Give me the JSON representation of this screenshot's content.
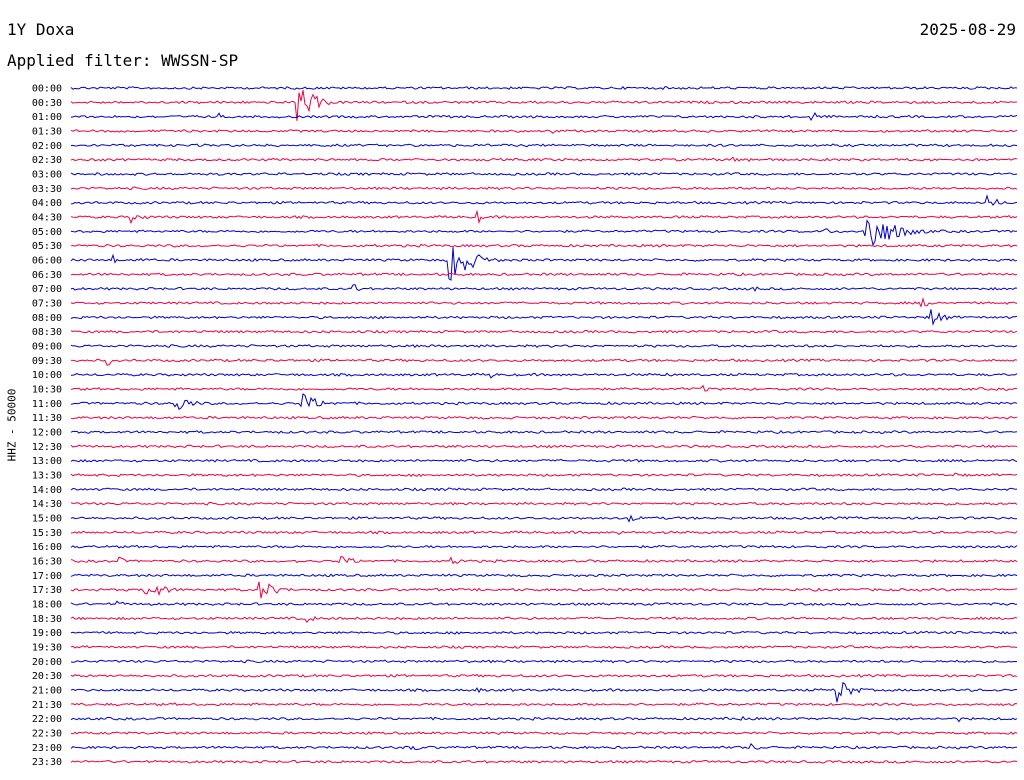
{
  "header": {
    "station": "1Y Doxa",
    "date": "2025-08-29",
    "filter": "Applied filter: WWSSN-SP"
  },
  "chart_data": {
    "type": "line",
    "title": "1Y Doxa",
    "subtitle": "Applied filter: WWSSN-SP",
    "ylabel": "HHZ - 50000",
    "colors": [
      "#0000cc",
      "#ee0044"
    ],
    "row_labels": [
      "00:00",
      "00:30",
      "01:00",
      "01:30",
      "02:00",
      "02:30",
      "03:00",
      "03:30",
      "04:00",
      "04:30",
      "05:00",
      "05:30",
      "06:00",
      "06:30",
      "07:00",
      "07:30",
      "08:00",
      "08:30",
      "09:00",
      "09:30",
      "10:00",
      "10:30",
      "11:00",
      "11:30",
      "12:00",
      "12:30",
      "13:00",
      "13:30",
      "14:00",
      "14:30",
      "15:00",
      "15:30",
      "16:00",
      "16:30",
      "17:00",
      "17:30",
      "18:00",
      "18:30",
      "19:00",
      "19:30",
      "20:00",
      "20:30",
      "21:00",
      "21:30",
      "22:00",
      "22:30",
      "23:00",
      "23:30"
    ],
    "events": [
      {
        "row": 1,
        "pos": 0.24,
        "amp": 22,
        "dur": 0.025
      },
      {
        "row": 2,
        "pos": 0.157,
        "amp": 4,
        "dur": 0.004
      },
      {
        "row": 2,
        "pos": 0.783,
        "amp": 8,
        "dur": 0.01
      },
      {
        "row": 1,
        "pos": 0.873,
        "amp": 3,
        "dur": 0.004
      },
      {
        "row": 3,
        "pos": 0.51,
        "amp": 3,
        "dur": 0.006
      },
      {
        "row": 5,
        "pos": 0.7,
        "amp": 3,
        "dur": 0.06
      },
      {
        "row": 8,
        "pos": 0.97,
        "amp": 7,
        "dur": 0.02
      },
      {
        "row": 9,
        "pos": 0.065,
        "amp": 6,
        "dur": 0.02
      },
      {
        "row": 9,
        "pos": 0.43,
        "amp": 7,
        "dur": 0.008
      },
      {
        "row": 9,
        "pos": 0.64,
        "amp": 4,
        "dur": 0.004
      },
      {
        "row": 10,
        "pos": 0.84,
        "amp": 26,
        "dur": 0.04
      },
      {
        "row": 10,
        "pos": 0.797,
        "amp": 5,
        "dur": 0.01
      },
      {
        "row": 12,
        "pos": 0.4,
        "amp": 30,
        "dur": 0.03
      },
      {
        "row": 12,
        "pos": 0.045,
        "amp": 5,
        "dur": 0.006
      },
      {
        "row": 12,
        "pos": 0.075,
        "amp": 3,
        "dur": 0.004
      },
      {
        "row": 14,
        "pos": 0.3,
        "amp": 5,
        "dur": 0.01
      },
      {
        "row": 14,
        "pos": 0.72,
        "amp": 5,
        "dur": 0.008
      },
      {
        "row": 15,
        "pos": 0.9,
        "amp": 5,
        "dur": 0.015
      },
      {
        "row": 16,
        "pos": 0.91,
        "amp": 10,
        "dur": 0.02
      },
      {
        "row": 19,
        "pos": 0.04,
        "amp": 5,
        "dur": 0.004
      },
      {
        "row": 20,
        "pos": 0.445,
        "amp": 4,
        "dur": 0.004
      },
      {
        "row": 20,
        "pos": 0.63,
        "amp": 3,
        "dur": 0.008
      },
      {
        "row": 21,
        "pos": 0.67,
        "amp": 4,
        "dur": 0.008
      },
      {
        "row": 22,
        "pos": 0.11,
        "amp": 10,
        "dur": 0.025
      },
      {
        "row": 22,
        "pos": 0.245,
        "amp": 10,
        "dur": 0.03
      },
      {
        "row": 27,
        "pos": 0.935,
        "amp": 3,
        "dur": 0.006
      },
      {
        "row": 28,
        "pos": 0.4,
        "amp": 3,
        "dur": 0.008
      },
      {
        "row": 30,
        "pos": 0.59,
        "amp": 4,
        "dur": 0.02
      },
      {
        "row": 31,
        "pos": 0.58,
        "amp": 3,
        "dur": 0.006
      },
      {
        "row": 33,
        "pos": 0.05,
        "amp": 5,
        "dur": 0.01
      },
      {
        "row": 33,
        "pos": 0.285,
        "amp": 5,
        "dur": 0.03
      },
      {
        "row": 33,
        "pos": 0.24,
        "amp": 3,
        "dur": 0.008
      },
      {
        "row": 33,
        "pos": 0.4,
        "amp": 4,
        "dur": 0.03
      },
      {
        "row": 35,
        "pos": 0.08,
        "amp": 10,
        "dur": 0.03
      },
      {
        "row": 35,
        "pos": 0.2,
        "amp": 11,
        "dur": 0.025
      },
      {
        "row": 36,
        "pos": 0.05,
        "amp": 3,
        "dur": 0.015
      },
      {
        "row": 37,
        "pos": 0.25,
        "amp": 6,
        "dur": 0.01
      },
      {
        "row": 42,
        "pos": 0.43,
        "amp": 3,
        "dur": 0.01
      },
      {
        "row": 42,
        "pos": 0.81,
        "amp": 16,
        "dur": 0.02
      },
      {
        "row": 44,
        "pos": 0.71,
        "amp": 6,
        "dur": 0.006
      },
      {
        "row": 44,
        "pos": 0.94,
        "amp": 3,
        "dur": 0.008
      },
      {
        "row": 46,
        "pos": 0.36,
        "amp": 4,
        "dur": 0.02
      },
      {
        "row": 46,
        "pos": 0.72,
        "amp": 5,
        "dur": 0.012
      }
    ]
  }
}
